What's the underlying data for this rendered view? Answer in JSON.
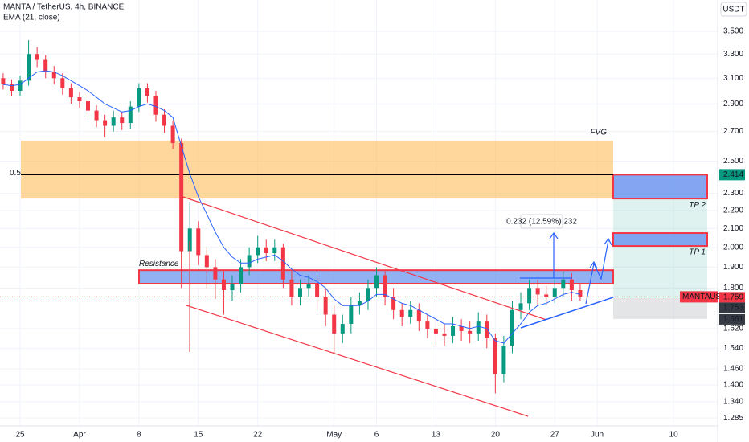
{
  "chart_data": {
    "type": "candlestick",
    "title": "MANTA / TetherUS, 4h, BINANCE",
    "indicator": "EMA (21, close)",
    "currency": "USDT",
    "symbol": "MANTAUSDT",
    "log_scale": true,
    "ylim": [
      1.259,
      3.641
    ],
    "xlim": [
      -2.37,
      82.2
    ],
    "yticks": [
      {
        "value": 3.5,
        "label": "3.500"
      },
      {
        "value": 3.3,
        "label": "3.300"
      },
      {
        "value": 3.1,
        "label": "3.100"
      },
      {
        "value": 2.9,
        "label": "2.900"
      },
      {
        "value": 2.7,
        "label": "2.700"
      },
      {
        "value": 2.5,
        "label": "2.500"
      },
      {
        "value": 2.3,
        "label": "2.300"
      },
      {
        "value": 2.2,
        "label": "2.200"
      },
      {
        "value": 2.1,
        "label": "2.100"
      },
      {
        "value": 2.0,
        "label": "2.000"
      },
      {
        "value": 1.9,
        "label": "1.900"
      },
      {
        "value": 1.8,
        "label": "1.800"
      },
      {
        "value": 1.62,
        "label": "1.620"
      },
      {
        "value": 1.54,
        "label": "1.540"
      },
      {
        "value": 1.46,
        "label": "1.460"
      },
      {
        "value": 1.4,
        "label": "1.400"
      },
      {
        "value": 1.34,
        "label": "1.340"
      },
      {
        "value": 1.285,
        "label": "1.285"
      }
    ],
    "xticks": [
      {
        "value": 0,
        "label": "25"
      },
      {
        "value": 7,
        "label": "Apr"
      },
      {
        "value": 14,
        "label": "8"
      },
      {
        "value": 21,
        "label": "15"
      },
      {
        "value": 28,
        "label": "22"
      },
      {
        "value": 37,
        "label": "May"
      },
      {
        "value": 42,
        "label": "6"
      },
      {
        "value": 49,
        "label": "13"
      },
      {
        "value": 56,
        "label": "20"
      },
      {
        "value": 63,
        "label": "27"
      },
      {
        "value": 68,
        "label": "Jun"
      },
      {
        "value": 77,
        "label": "10"
      }
    ],
    "up_color": "#089981",
    "down_color": "#f23645",
    "ema_color": "#2962ff",
    "x": [
      -2,
      -1,
      0,
      1,
      2,
      3,
      4,
      5,
      6,
      7,
      8,
      9,
      10,
      11,
      12,
      13,
      14,
      15,
      16,
      17,
      18,
      19,
      20,
      21,
      22,
      23,
      24,
      25,
      26,
      27,
      28,
      29,
      30,
      31,
      32,
      33,
      34,
      35,
      36,
      37,
      38,
      39,
      40,
      41,
      42,
      43,
      44,
      45,
      46,
      47,
      48,
      49,
      50,
      51,
      52,
      53,
      54,
      55,
      56,
      57,
      58,
      59,
      60,
      61,
      62,
      63,
      64,
      65,
      66
    ],
    "open": [
      3.1,
      3.05,
      3.0,
      3.08,
      3.3,
      3.25,
      3.15,
      3.1,
      3.02,
      2.95,
      2.92,
      2.85,
      2.78,
      2.74,
      2.8,
      2.76,
      2.88,
      3.02,
      2.96,
      2.82,
      2.74,
      2.62,
      1.98,
      2.1,
      1.96,
      1.9,
      1.84,
      1.79,
      1.82,
      1.9,
      1.96,
      2.0,
      1.97,
      2.0,
      1.84,
      1.76,
      1.8,
      1.82,
      1.76,
      1.68,
      1.6,
      1.64,
      1.72,
      1.74,
      1.8,
      1.86,
      1.76,
      1.7,
      1.67,
      1.7,
      1.65,
      1.62,
      1.6,
      1.59,
      1.63,
      1.61,
      1.6,
      1.65,
      1.58,
      1.44,
      1.55,
      1.7,
      1.73,
      1.8,
      1.77,
      1.76,
      1.8,
      1.84,
      1.79
    ],
    "high": [
      3.14,
      3.09,
      3.12,
      3.42,
      3.36,
      3.29,
      3.2,
      3.14,
      3.06,
      2.99,
      2.96,
      2.89,
      2.82,
      2.85,
      2.84,
      2.92,
      3.06,
      3.06,
      3.0,
      2.86,
      2.78,
      2.65,
      2.25,
      2.14,
      2.0,
      1.94,
      1.88,
      1.86,
      1.94,
      2.0,
      2.06,
      2.04,
      2.04,
      2.02,
      1.88,
      1.84,
      1.86,
      1.86,
      1.8,
      1.72,
      1.68,
      1.76,
      1.78,
      1.84,
      1.9,
      1.88,
      1.8,
      1.73,
      1.74,
      1.73,
      1.68,
      1.66,
      1.64,
      1.67,
      1.66,
      1.65,
      1.69,
      1.68,
      1.6,
      1.59,
      1.74,
      1.78,
      1.84,
      1.84,
      1.81,
      1.84,
      1.88,
      1.87,
      1.82
    ],
    "low": [
      3.01,
      2.96,
      2.96,
      3.04,
      3.19,
      3.1,
      3.05,
      2.97,
      2.9,
      2.87,
      2.8,
      2.73,
      2.66,
      2.7,
      2.71,
      2.72,
      2.84,
      2.91,
      2.77,
      2.69,
      2.58,
      1.8,
      1.55,
      1.91,
      1.8,
      1.75,
      1.68,
      1.74,
      1.78,
      1.86,
      1.92,
      1.93,
      1.93,
      1.8,
      1.72,
      1.72,
      1.76,
      1.7,
      1.63,
      1.52,
      1.56,
      1.6,
      1.68,
      1.7,
      1.76,
      1.72,
      1.66,
      1.63,
      1.64,
      1.61,
      1.58,
      1.55,
      1.55,
      1.56,
      1.57,
      1.56,
      1.57,
      1.54,
      1.37,
      1.41,
      1.52,
      1.66,
      1.7,
      1.72,
      1.72,
      1.73,
      1.76,
      1.74,
      1.74
    ],
    "close": [
      3.05,
      3.0,
      3.08,
      3.3,
      3.25,
      3.15,
      3.1,
      3.02,
      2.95,
      2.92,
      2.85,
      2.78,
      2.74,
      2.8,
      2.76,
      2.88,
      3.02,
      2.96,
      2.82,
      2.74,
      2.62,
      1.98,
      2.1,
      1.96,
      1.9,
      1.84,
      1.79,
      1.82,
      1.9,
      1.96,
      2.0,
      1.97,
      2.0,
      1.84,
      1.76,
      1.8,
      1.82,
      1.76,
      1.68,
      1.6,
      1.64,
      1.72,
      1.74,
      1.8,
      1.86,
      1.76,
      1.7,
      1.67,
      1.7,
      1.65,
      1.62,
      1.6,
      1.59,
      1.63,
      1.61,
      1.6,
      1.65,
      1.58,
      1.44,
      1.55,
      1.7,
      1.73,
      1.8,
      1.77,
      1.76,
      1.8,
      1.84,
      1.79,
      1.759
    ],
    "ema": [
      3.05,
      3.04,
      3.05,
      3.1,
      3.15,
      3.16,
      3.15,
      3.12,
      3.08,
      3.04,
      3.0,
      2.95,
      2.9,
      2.87,
      2.84,
      2.85,
      2.88,
      2.9,
      2.88,
      2.85,
      2.8,
      2.6,
      2.42,
      2.28,
      2.18,
      2.08,
      2.0,
      1.95,
      1.92,
      1.92,
      1.94,
      1.95,
      1.96,
      1.93,
      1.89,
      1.86,
      1.85,
      1.83,
      1.8,
      1.75,
      1.72,
      1.72,
      1.72,
      1.74,
      1.77,
      1.77,
      1.75,
      1.73,
      1.72,
      1.7,
      1.68,
      1.66,
      1.64,
      1.64,
      1.63,
      1.62,
      1.63,
      1.62,
      1.57,
      1.56,
      1.6,
      1.64,
      1.69,
      1.72,
      1.73,
      1.75,
      1.77,
      1.78,
      1.77
    ],
    "fvg": {
      "label": "FVG",
      "low": 2.269,
      "high": 2.637
    },
    "level": {
      "label": "0.5",
      "value": 2.414,
      "value_label": "2.414"
    },
    "resistance": {
      "label": "Resistance",
      "low": 1.82,
      "high": 1.885
    },
    "tp2": {
      "label": "TP 2",
      "low": 2.269,
      "high": 2.414
    },
    "tp1": {
      "label": "TP 1",
      "low": 2.007,
      "high": 2.075
    },
    "target_area": {
      "low": 1.753,
      "high": 2.269
    },
    "stop_area": {
      "low": 1.661,
      "high": 1.753
    },
    "price_labels": [
      {
        "value": 1.759,
        "label": "1.759"
      },
      {
        "value": 1.753,
        "label": "1.753"
      },
      {
        "value": 1.661,
        "label": "1.661"
      }
    ],
    "measure": "0.232 (12.59%) 232"
  }
}
